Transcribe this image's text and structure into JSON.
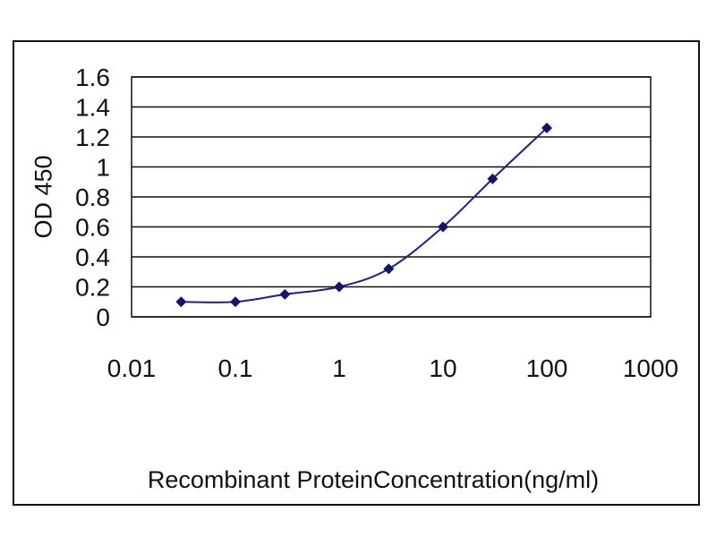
{
  "chart_data": {
    "type": "line",
    "title": "",
    "xlabel": "Recombinant ProteinConcentration(ng/ml)",
    "ylabel": "OD 450",
    "xscale": "log",
    "xlim": [
      0.01,
      1000
    ],
    "ylim": [
      0,
      1.6
    ],
    "x_ticks": [
      "0.01",
      "0.1",
      "1",
      "10",
      "100",
      "1000"
    ],
    "y_ticks": [
      "0",
      "0.2",
      "0.4",
      "0.6",
      "0.8",
      "1",
      "1.2",
      "1.4",
      "1.6"
    ],
    "grid": "horizontal",
    "legend": "none",
    "series": [
      {
        "x": [
          0.03,
          0.1,
          0.3,
          1,
          3,
          10,
          30,
          100
        ],
        "y": [
          0.1,
          0.1,
          0.15,
          0.2,
          0.32,
          0.6,
          0.92,
          1.26
        ]
      }
    ],
    "colors": {
      "series": "#1f1f8a",
      "marker": "#14146e",
      "grid": "#111111"
    }
  }
}
